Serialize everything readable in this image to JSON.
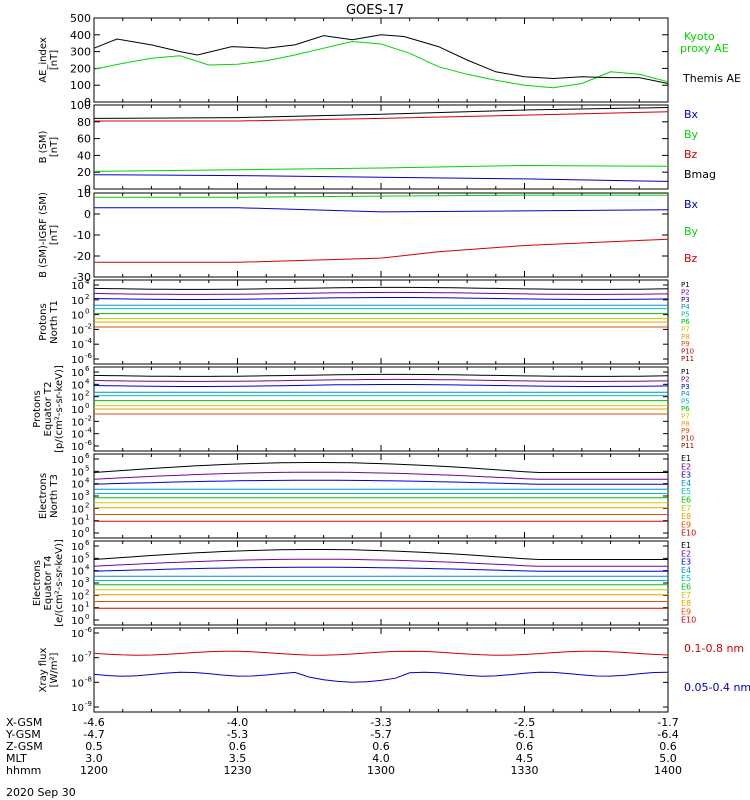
{
  "title": "GOES-17",
  "date_label": "2020 Sep 30",
  "colors": {
    "frame": "#000000",
    "red": "#d40000",
    "green": "#00d400",
    "blue": "#0000c8",
    "black": "#000000"
  },
  "ephemeris": {
    "rows": [
      {
        "label": "X-GSM",
        "values": [
          "-4.6",
          "-4.0",
          "-3.3",
          "-2.5",
          "-1.7"
        ]
      },
      {
        "label": "Y-GSM",
        "values": [
          "-4.7",
          "-5.3",
          "-5.7",
          "-6.1",
          "-6.4"
        ]
      },
      {
        "label": "Z-GSM",
        "values": [
          "0.5",
          "0.6",
          "0.6",
          "0.6",
          "0.6"
        ]
      },
      {
        "label": "MLT",
        "values": [
          "3.0",
          "3.5",
          "4.0",
          "4.5",
          "5.0"
        ]
      },
      {
        "label": "hhmm",
        "values": [
          "1200",
          "1230",
          "1300",
          "1330",
          "1400"
        ]
      }
    ]
  },
  "chart_data": [
    {
      "type": "line",
      "id": "ae",
      "ylabel": "AE_index [nT]",
      "ylim": [
        0,
        500
      ],
      "yticks": [
        "0",
        "100",
        "200",
        "300",
        "400",
        "500"
      ],
      "x": [
        "1200",
        "1230",
        "1300",
        "1330",
        "1400"
      ],
      "legend": [
        "Kyoto",
        "proxy AE",
        "Themis AE"
      ],
      "series": [
        {
          "name": "Kyoto proxy AE",
          "color": "green",
          "points": [
            [
              0,
              195
            ],
            [
              10,
              230
            ],
            [
              20,
              260
            ],
            [
              30,
              275
            ],
            [
              40,
              220
            ],
            [
              50,
              225
            ],
            [
              60,
              245
            ],
            [
              70,
              280
            ],
            [
              80,
              320
            ],
            [
              90,
              360
            ],
            [
              100,
              345
            ],
            [
              110,
              290
            ],
            [
              120,
              210
            ],
            [
              130,
              165
            ],
            [
              140,
              130
            ],
            [
              150,
              100
            ],
            [
              160,
              85
            ],
            [
              170,
              110
            ],
            [
              180,
              180
            ],
            [
              190,
              165
            ],
            [
              200,
              120
            ]
          ]
        },
        {
          "name": "Themis AE",
          "color": "black",
          "points": [
            [
              0,
              320
            ],
            [
              8,
              375
            ],
            [
              20,
              340
            ],
            [
              30,
              300
            ],
            [
              36,
              280
            ],
            [
              48,
              330
            ],
            [
              60,
              320
            ],
            [
              70,
              340
            ],
            [
              80,
              395
            ],
            [
              90,
              370
            ],
            [
              100,
              400
            ],
            [
              108,
              390
            ],
            [
              120,
              330
            ],
            [
              130,
              250
            ],
            [
              140,
              180
            ],
            [
              150,
              150
            ],
            [
              160,
              140
            ],
            [
              170,
              150
            ],
            [
              180,
              145
            ],
            [
              190,
              145
            ],
            [
              200,
              110
            ]
          ]
        }
      ]
    },
    {
      "type": "line",
      "id": "bsm",
      "ylabel": "B (SM) [nT]",
      "ylim": [
        0,
        100
      ],
      "yticks": [
        "0",
        "20",
        "40",
        "60",
        "80",
        "100"
      ],
      "x": [
        "1200",
        "1230",
        "1300",
        "1330",
        "1400"
      ],
      "legend": [
        "Bx",
        "By",
        "Bz",
        "Bmag"
      ],
      "series": [
        {
          "name": "Bx",
          "color": "blue",
          "points": [
            [
              0,
              17
            ],
            [
              50,
              16
            ],
            [
              100,
              14
            ],
            [
              150,
              12
            ],
            [
              200,
              9
            ]
          ]
        },
        {
          "name": "By",
          "color": "green",
          "points": [
            [
              0,
              21
            ],
            [
              50,
              23
            ],
            [
              100,
              25
            ],
            [
              150,
              28
            ],
            [
              200,
              27
            ]
          ]
        },
        {
          "name": "Bz",
          "color": "red",
          "points": [
            [
              0,
              81
            ],
            [
              50,
              81
            ],
            [
              100,
              84
            ],
            [
              150,
              88
            ],
            [
              200,
              92
            ]
          ]
        },
        {
          "name": "Bmag",
          "color": "black",
          "points": [
            [
              0,
              84
            ],
            [
              50,
              85
            ],
            [
              100,
              89
            ],
            [
              150,
              94
            ],
            [
              200,
              97
            ]
          ]
        }
      ]
    },
    {
      "type": "line",
      "id": "bigrf",
      "ylabel": "B (SM)-IGRF (SM) [nT]",
      "ylim": [
        -30,
        10
      ],
      "yticks": [
        "-30",
        "-20",
        "-10",
        "0",
        "10"
      ],
      "x": [
        "1200",
        "1230",
        "1300",
        "1330",
        "1400"
      ],
      "legend": [
        "Bx",
        "By",
        "Bz"
      ],
      "series": [
        {
          "name": "Bx",
          "color": "blue",
          "points": [
            [
              0,
              3
            ],
            [
              50,
              3
            ],
            [
              100,
              1
            ],
            [
              150,
              1.5
            ],
            [
              200,
              2
            ]
          ]
        },
        {
          "name": "By",
          "color": "green",
          "points": [
            [
              0,
              8
            ],
            [
              50,
              8
            ],
            [
              100,
              8.5
            ],
            [
              150,
              9
            ],
            [
              200,
              9
            ]
          ]
        },
        {
          "name": "Bz",
          "color": "red",
          "points": [
            [
              0,
              -23
            ],
            [
              50,
              -23
            ],
            [
              100,
              -21
            ],
            [
              120,
              -18
            ],
            [
              150,
              -15
            ],
            [
              200,
              -12
            ]
          ]
        }
      ]
    },
    {
      "type": "line",
      "id": "protons_t1",
      "ylabel": "Protons North T1",
      "ytick_exponents": [
        "4",
        "2",
        "0",
        "-2",
        "-4",
        "-6"
      ],
      "x": [
        "1200",
        "1230",
        "1300",
        "1330",
        "1400"
      ],
      "legend": [
        "P1",
        "P2",
        "P3",
        "P4",
        "P5",
        "P6",
        "P7",
        "P8",
        "P9",
        "P10",
        "P11"
      ]
    },
    {
      "type": "line",
      "id": "protons_t2",
      "ylabel": "Protons Equator T2 [p/(cm²-s-sr-keV)]",
      "ytick_exponents": [
        "6",
        "4",
        "2",
        "0",
        "-2",
        "-4",
        "-6"
      ],
      "x": [
        "1200",
        "1230",
        "1300",
        "1330",
        "1400"
      ],
      "legend": [
        "P1",
        "P2",
        "P3",
        "P4",
        "P5",
        "P6",
        "P7",
        "P8",
        "P9",
        "P10",
        "P11"
      ]
    },
    {
      "type": "line",
      "id": "electrons_t3",
      "ylabel": "Electrons North T3",
      "ytick_exponents": [
        "6",
        "5",
        "4",
        "3",
        "2",
        "1",
        "0"
      ],
      "x": [
        "1200",
        "1230",
        "1300",
        "1330",
        "1400"
      ],
      "legend": [
        "E1",
        "E2",
        "E3",
        "E4",
        "E5",
        "E6",
        "E7",
        "E8",
        "E9",
        "E10"
      ]
    },
    {
      "type": "line",
      "id": "electrons_t4",
      "ylabel": "Electrons Equator T4 [e/(cm²-s-sr-keV)]",
      "ytick_exponents": [
        "6",
        "5",
        "4",
        "3",
        "2",
        "1",
        "0"
      ],
      "x": [
        "1200",
        "1230",
        "1300",
        "1330",
        "1400"
      ],
      "legend": [
        "E1",
        "E2",
        "E3",
        "E4",
        "E5",
        "E6",
        "E7",
        "E8",
        "E9",
        "E10"
      ]
    },
    {
      "type": "line",
      "id": "xray",
      "ylabel": "Xray flux [W/m²]",
      "ytick_exponents": [
        "-6",
        "-7",
        "-8",
        "-9"
      ],
      "x": [
        "1200",
        "1230",
        "1300",
        "1330",
        "1400"
      ],
      "legend": [
        "0.1-0.8 nm",
        "0.05-0.4 nm"
      ]
    }
  ]
}
